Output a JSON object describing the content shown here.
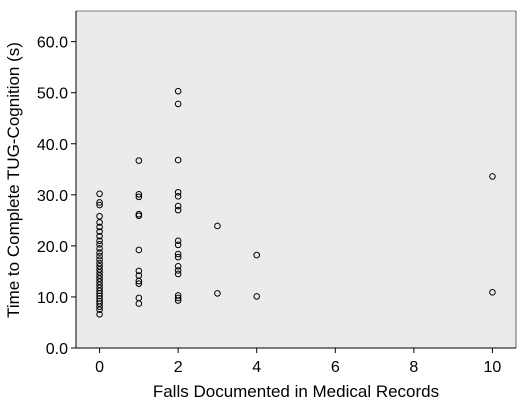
{
  "chart_data": {
    "type": "scatter",
    "xlabel": "Falls Documented in Medical Records",
    "ylabel": "Time to Complete TUG-Cognition (s)",
    "xlim": [
      -0.6,
      10.6
    ],
    "ylim": [
      0,
      66
    ],
    "x_ticks": [
      0,
      2,
      4,
      6,
      8,
      10
    ],
    "x_tick_labels": [
      "0",
      "2",
      "4",
      "6",
      "8",
      "10"
    ],
    "y_ticks": [
      0,
      10,
      20,
      30,
      40,
      50,
      60
    ],
    "y_tick_labels": [
      "0.0",
      "10.0",
      "20.0",
      "30.0",
      "40.0",
      "50.0",
      "60.0"
    ],
    "grid": false,
    "legend": "none",
    "colors": {
      "plot_bg": "#ebebeb",
      "marker": "#000000",
      "frame": "#000000"
    },
    "points": [
      {
        "x": 0,
        "y": 30.2
      },
      {
        "x": 0,
        "y": 28.5
      },
      {
        "x": 0,
        "y": 28.0
      },
      {
        "x": 0,
        "y": 25.8
      },
      {
        "x": 0,
        "y": 24.6
      },
      {
        "x": 0,
        "y": 23.7
      },
      {
        "x": 0,
        "y": 22.8
      },
      {
        "x": 0,
        "y": 21.9
      },
      {
        "x": 0,
        "y": 21.0
      },
      {
        "x": 0,
        "y": 20.3
      },
      {
        "x": 0,
        "y": 19.5
      },
      {
        "x": 0,
        "y": 18.7
      },
      {
        "x": 0,
        "y": 18.0
      },
      {
        "x": 0,
        "y": 17.3
      },
      {
        "x": 0,
        "y": 16.6
      },
      {
        "x": 0,
        "y": 16.0
      },
      {
        "x": 0,
        "y": 15.4
      },
      {
        "x": 0,
        "y": 14.8
      },
      {
        "x": 0,
        "y": 14.2
      },
      {
        "x": 0,
        "y": 13.6
      },
      {
        "x": 0,
        "y": 13.0
      },
      {
        "x": 0,
        "y": 12.4
      },
      {
        "x": 0,
        "y": 11.8
      },
      {
        "x": 0,
        "y": 11.2
      },
      {
        "x": 0,
        "y": 10.7
      },
      {
        "x": 0,
        "y": 10.2
      },
      {
        "x": 0,
        "y": 9.7
      },
      {
        "x": 0,
        "y": 9.2
      },
      {
        "x": 0,
        "y": 8.7
      },
      {
        "x": 0,
        "y": 8.1
      },
      {
        "x": 0,
        "y": 7.5
      },
      {
        "x": 0,
        "y": 6.6
      },
      {
        "x": 1,
        "y": 36.7
      },
      {
        "x": 1,
        "y": 30.1
      },
      {
        "x": 1,
        "y": 29.6
      },
      {
        "x": 1,
        "y": 26.2
      },
      {
        "x": 1,
        "y": 25.9
      },
      {
        "x": 1,
        "y": 19.2
      },
      {
        "x": 1,
        "y": 15.1
      },
      {
        "x": 1,
        "y": 14.2
      },
      {
        "x": 1,
        "y": 13.1
      },
      {
        "x": 1,
        "y": 12.6
      },
      {
        "x": 1,
        "y": 9.8
      },
      {
        "x": 1,
        "y": 8.7
      },
      {
        "x": 2,
        "y": 50.3
      },
      {
        "x": 2,
        "y": 47.8
      },
      {
        "x": 2,
        "y": 36.8
      },
      {
        "x": 2,
        "y": 30.5
      },
      {
        "x": 2,
        "y": 29.7
      },
      {
        "x": 2,
        "y": 27.8
      },
      {
        "x": 2,
        "y": 27.0
      },
      {
        "x": 2,
        "y": 21.0
      },
      {
        "x": 2,
        "y": 20.2
      },
      {
        "x": 2,
        "y": 18.4
      },
      {
        "x": 2,
        "y": 17.8
      },
      {
        "x": 2,
        "y": 16.0
      },
      {
        "x": 2,
        "y": 15.2
      },
      {
        "x": 2,
        "y": 14.5
      },
      {
        "x": 2,
        "y": 10.3
      },
      {
        "x": 2,
        "y": 9.8
      },
      {
        "x": 2,
        "y": 9.3
      },
      {
        "x": 3,
        "y": 23.9
      },
      {
        "x": 3,
        "y": 10.7
      },
      {
        "x": 4,
        "y": 18.2
      },
      {
        "x": 4,
        "y": 10.1
      },
      {
        "x": 10,
        "y": 33.6
      },
      {
        "x": 10,
        "y": 10.9
      }
    ]
  }
}
